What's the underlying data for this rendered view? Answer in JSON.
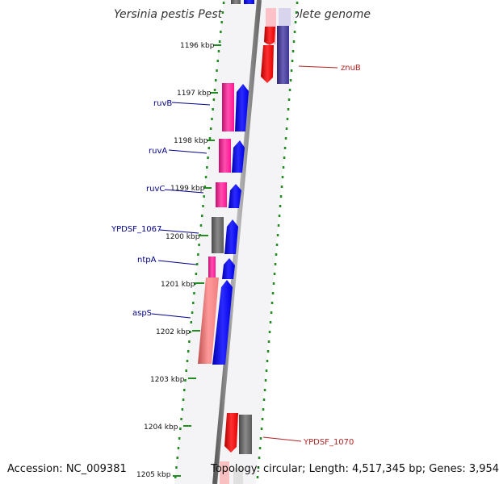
{
  "title": "Yersinia pestis Pestoides F, complete genome",
  "accession": "Accession: NC_009381",
  "summary": "Topology: circular; Length: 4,517,345 bp; Genes: 3,954",
  "colors": {
    "backbone": "#808080",
    "tick": "#228b22",
    "forward_label": "#00008b",
    "reverse_label": "#b22222",
    "pink": "#ff1493",
    "blue": "#0000ff",
    "gray": "#696969",
    "salmon": "#f08080",
    "red": "#ff0000",
    "navy": "#483d8b"
  },
  "ticks": [
    "1196 kbp",
    "1197 kbp",
    "1198 kbp",
    "1199 kbp",
    "1200 kbp",
    "1201 kbp",
    "1202 kbp",
    "1203 kbp",
    "1204 kbp",
    "1205 kbp"
  ],
  "gene_labels": [
    "znuB",
    "ruvB",
    "ruvA",
    "ruvC",
    "YPDSF_1067",
    "ntpA",
    "aspS",
    "YPDSF_1070"
  ]
}
